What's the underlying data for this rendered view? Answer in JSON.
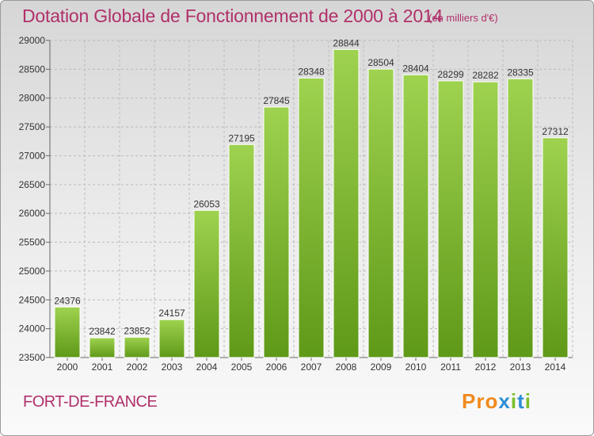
{
  "header": {
    "title": "Dotation Globale de Fonctionnement de 2000 à 2014",
    "subtitle": "(en milliers d'€)"
  },
  "footer": {
    "city": "FORT-DE-FRANCE",
    "logo_text": "Proxiti"
  },
  "colors": {
    "title": "#b0306a",
    "bar_top": "#9ed24f",
    "bar_bottom": "#5f9918",
    "logo_letters": [
      "#f08a1c",
      "#f08a1c",
      "#f08a1c",
      "#2c8fd6",
      "#7cbf2a",
      "#2c8fd6",
      "#7cbf2a"
    ]
  },
  "chart_data": {
    "type": "bar",
    "title": "Dotation Globale de Fonctionnement de 2000 à 2014",
    "subtitle": "(en milliers d'€)",
    "xlabel": "",
    "ylabel": "",
    "categories": [
      "2000",
      "2001",
      "2002",
      "2003",
      "2004",
      "2005",
      "2006",
      "2007",
      "2008",
      "2009",
      "2010",
      "2011",
      "2012",
      "2013",
      "2014"
    ],
    "values": [
      24376,
      23842,
      23852,
      24157,
      26053,
      27195,
      27845,
      28348,
      28844,
      28504,
      28404,
      28299,
      28282,
      28335,
      27312
    ],
    "data_labels": [
      "24376",
      "23842",
      "23852",
      "24157",
      "26053",
      "27195",
      "27845",
      "28348",
      "28844",
      "28504",
      "28404",
      "28299",
      "28282",
      "28335",
      "27312"
    ],
    "ylim": [
      23500,
      29000
    ],
    "yticks": [
      23500,
      24000,
      24500,
      25000,
      25500,
      26000,
      26500,
      27000,
      27500,
      28000,
      28500,
      29000
    ],
    "ytick_labels": [
      "23500",
      "24000",
      "24500",
      "25000",
      "25500",
      "26000",
      "26500",
      "27000",
      "27500",
      "28000",
      "28500",
      "29000"
    ],
    "grid": true,
    "legend": "none"
  }
}
